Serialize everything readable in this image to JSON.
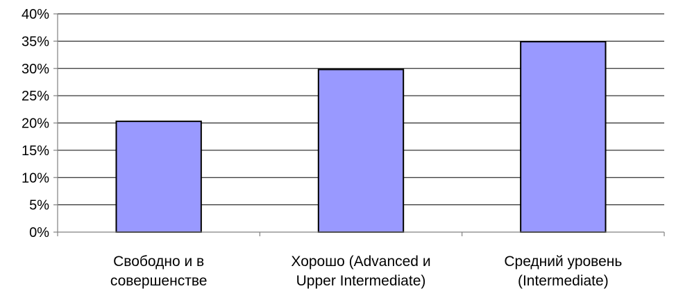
{
  "chart_data": {
    "type": "bar",
    "categories": [
      [
        "Свободно и в",
        "совершенстве"
      ],
      [
        "Хорошо (Advanced и",
        "Upper Intermediate)"
      ],
      [
        "Средний уровень",
        "(Intermediate)"
      ]
    ],
    "values": [
      20.3,
      29.8,
      34.9
    ],
    "ylim": [
      0,
      40
    ],
    "ytick_step": 5,
    "ytick_labels": [
      "0%",
      "5%",
      "10%",
      "15%",
      "20%",
      "25%",
      "30%",
      "35%",
      "40%"
    ],
    "title": "",
    "xlabel": "",
    "ylabel": "",
    "grid": true,
    "legend": "none",
    "bar_color": "#9999ff",
    "bar_edge_color": "#000000",
    "grid_color": "#000000",
    "axis_color": "#808080"
  }
}
